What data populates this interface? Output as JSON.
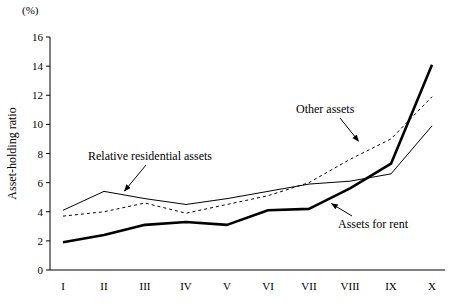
{
  "chart_data": {
    "type": "line",
    "y_label": "Asset-holding ratio",
    "annotations": [
      "(%)"
    ],
    "categories": [
      "I",
      "II",
      "III",
      "IV",
      "V",
      "VI",
      "VII",
      "VIII",
      "IX",
      "X"
    ],
    "series": [
      {
        "name": "Relative residential assets",
        "color": "#000000",
        "line_style": "solid",
        "values": [
          4.1,
          5.4,
          4.9,
          4.5,
          4.9,
          5.4,
          5.9,
          6.1,
          6.6,
          9.9
        ]
      },
      {
        "name": "Other assets",
        "color": "#000000",
        "line_style": "dashed",
        "values": [
          3.7,
          4.0,
          4.6,
          3.9,
          4.5,
          5.1,
          6.0,
          7.6,
          9.0,
          11.9
        ]
      },
      {
        "name": "Assets for rent",
        "color": "#000000",
        "line_style": "solid",
        "values": [
          1.9,
          2.4,
          3.1,
          3.3,
          3.1,
          4.1,
          4.2,
          5.6,
          7.3,
          14.1
        ]
      }
    ],
    "ylim": [
      0,
      16
    ],
    "yticks": [
      0,
      2,
      4,
      6,
      8,
      10,
      12,
      14,
      16
    ],
    "grid": false
  }
}
